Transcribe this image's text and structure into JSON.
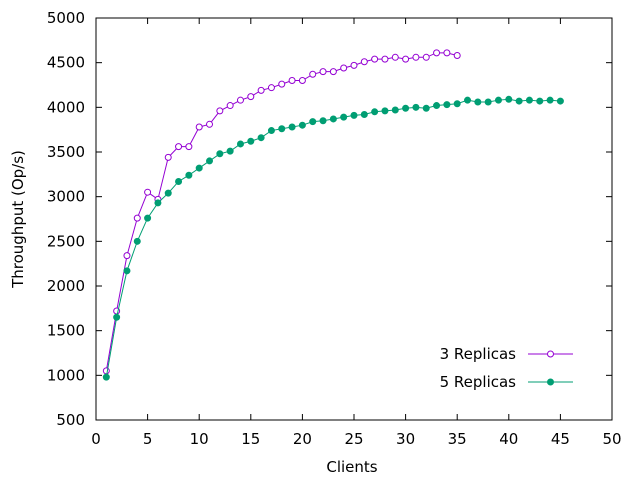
{
  "chart_data": {
    "type": "line",
    "title": "",
    "xlabel": "Clients",
    "ylabel": "Throughput (Op/s)",
    "xlim": [
      0,
      50
    ],
    "ylim": [
      500,
      5000
    ],
    "xticks": [
      0,
      5,
      10,
      15,
      20,
      25,
      30,
      35,
      40,
      45,
      50
    ],
    "yticks": [
      500,
      1000,
      1500,
      2000,
      2500,
      3000,
      3500,
      4000,
      4500,
      5000
    ],
    "grid": false,
    "legend_position": "bottom-right",
    "series": [
      {
        "name": "3 Replicas",
        "color": "#9400d3",
        "marker": "open-circle",
        "x": [
          1,
          2,
          3,
          4,
          5,
          6,
          7,
          8,
          9,
          10,
          11,
          12,
          13,
          14,
          15,
          16,
          17,
          18,
          19,
          20,
          21,
          22,
          23,
          24,
          25,
          26,
          27,
          28,
          29,
          30,
          31,
          32,
          33,
          34,
          35
        ],
        "y": [
          1050,
          1720,
          2340,
          2760,
          3050,
          2970,
          3440,
          3560,
          3560,
          3780,
          3810,
          3960,
          4020,
          4080,
          4120,
          4190,
          4220,
          4260,
          4300,
          4300,
          4370,
          4400,
          4400,
          4440,
          4470,
          4510,
          4540,
          4540,
          4560,
          4540,
          4560,
          4560,
          4610,
          4610,
          4580
        ]
      },
      {
        "name": "5 Replicas",
        "color": "#009e73",
        "marker": "filled-circle",
        "x": [
          1,
          2,
          3,
          4,
          5,
          6,
          7,
          8,
          9,
          10,
          11,
          12,
          13,
          14,
          15,
          16,
          17,
          18,
          19,
          20,
          21,
          22,
          23,
          24,
          25,
          26,
          27,
          28,
          29,
          30,
          31,
          32,
          33,
          34,
          35,
          36,
          37,
          38,
          39,
          40,
          41,
          42,
          43,
          44,
          45
        ],
        "y": [
          980,
          1650,
          2170,
          2500,
          2760,
          2930,
          3040,
          3170,
          3240,
          3320,
          3400,
          3480,
          3510,
          3590,
          3620,
          3660,
          3740,
          3760,
          3780,
          3800,
          3840,
          3850,
          3870,
          3890,
          3910,
          3920,
          3950,
          3960,
          3970,
          3990,
          4000,
          3990,
          4020,
          4030,
          4040,
          4080,
          4060,
          4060,
          4080,
          4090,
          4070,
          4080,
          4070,
          4080,
          4070
        ]
      }
    ]
  }
}
